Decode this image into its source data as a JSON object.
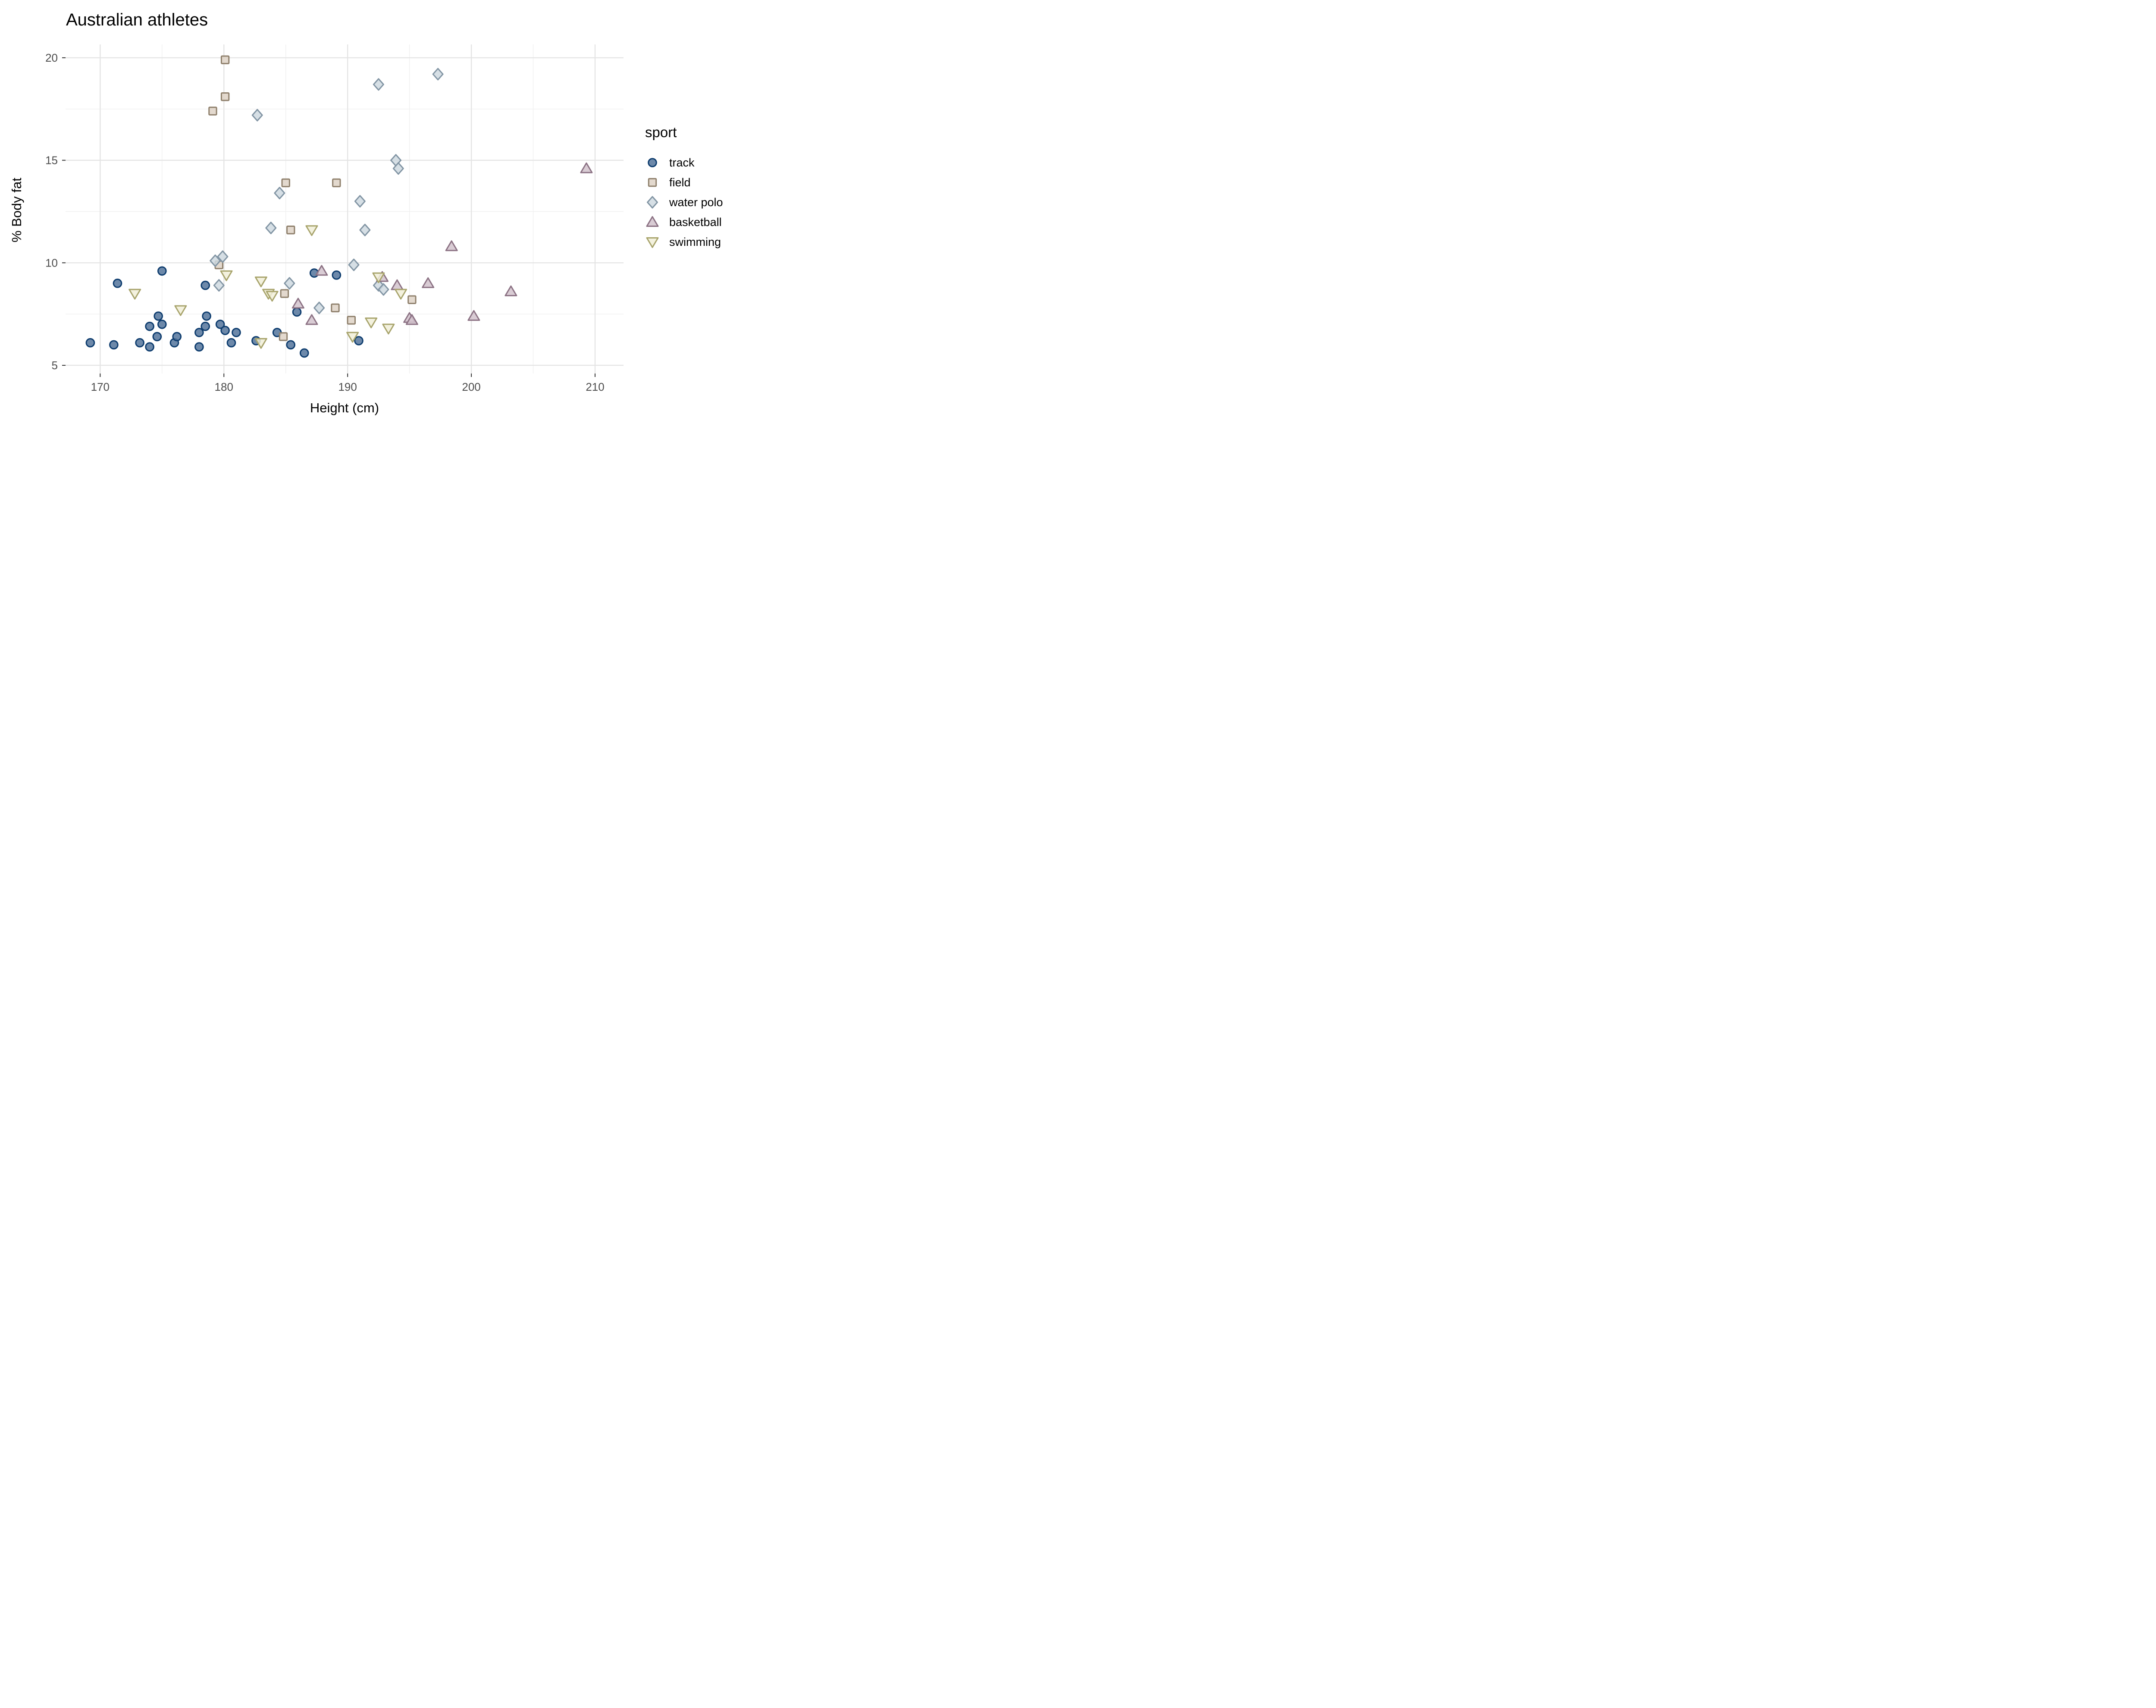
{
  "title": "Australian athletes",
  "axes": {
    "x": {
      "label": "Height (cm)",
      "major_ticks": [
        170,
        180,
        190,
        200,
        210
      ],
      "minor_ticks": [
        175,
        185,
        195,
        205
      ],
      "range": [
        167.2,
        212.3
      ]
    },
    "y": {
      "label": "% Body fat",
      "major_ticks": [
        5,
        10,
        15,
        20
      ],
      "minor_ticks": [
        7.5,
        12.5,
        17.5
      ],
      "range": [
        4.6,
        20.65
      ]
    }
  },
  "legend": {
    "title": "sport",
    "position": "right",
    "items": [
      {
        "label": "track",
        "marker": "circle"
      },
      {
        "label": "field",
        "marker": "square"
      },
      {
        "label": "water polo",
        "marker": "diamond"
      },
      {
        "label": "basketball",
        "marker": "triangle-up"
      },
      {
        "label": "swimming",
        "marker": "triangle-down"
      }
    ]
  },
  "colors": {
    "track": {
      "fill": "#54749B",
      "stroke": "#0D3C6E"
    },
    "field": {
      "fill": "#DED2C5",
      "stroke": "#8F806C"
    },
    "water polo": {
      "fill": "#CFD9E1",
      "stroke": "#8295A4"
    },
    "basketball": {
      "fill": "#D2C3CD",
      "stroke": "#8C7284"
    },
    "swimming": {
      "fill": "#F1EFD8",
      "stroke": "#A8A46C"
    },
    "grid_major": "#E4E4E4",
    "grid_minor": "#EFEFEF",
    "axis_text": "#4D4D4D",
    "tick_mark": "#333333"
  },
  "chart_data": {
    "type": "scatter",
    "title": "Australian athletes",
    "xlabel": "Height (cm)",
    "ylabel": "% Body fat",
    "xlim": [
      167.2,
      212.3
    ],
    "ylim": [
      4.6,
      20.65
    ],
    "grid": "on",
    "legend_position": "right",
    "series": [
      {
        "name": "track",
        "marker": "circle",
        "points": [
          [
            169.2,
            6.1
          ],
          [
            171.1,
            6.0
          ],
          [
            171.4,
            9.0
          ],
          [
            173.2,
            6.1
          ],
          [
            174.0,
            6.9
          ],
          [
            174.0,
            5.9
          ],
          [
            174.6,
            6.4
          ],
          [
            174.7,
            7.4
          ],
          [
            175.0,
            7.0
          ],
          [
            175.0,
            9.6
          ],
          [
            176.0,
            6.1
          ],
          [
            176.2,
            6.4
          ],
          [
            178.0,
            6.6
          ],
          [
            178.0,
            5.9
          ],
          [
            178.5,
            8.9
          ],
          [
            178.6,
            7.4
          ],
          [
            178.5,
            6.9
          ],
          [
            179.7,
            7.0
          ],
          [
            180.1,
            6.7
          ],
          [
            180.6,
            6.1
          ],
          [
            181.0,
            6.6
          ],
          [
            182.6,
            6.2
          ],
          [
            184.3,
            6.6
          ],
          [
            185.4,
            6.0
          ],
          [
            185.9,
            7.6
          ],
          [
            186.5,
            5.6
          ],
          [
            187.3,
            9.5
          ],
          [
            189.1,
            9.4
          ],
          [
            190.9,
            6.2
          ]
        ]
      },
      {
        "name": "field",
        "marker": "square",
        "points": [
          [
            180.1,
            19.9
          ],
          [
            180.1,
            18.1
          ],
          [
            179.1,
            17.4
          ],
          [
            185.0,
            13.9
          ],
          [
            189.1,
            13.9
          ],
          [
            185.4,
            11.6
          ],
          [
            179.6,
            9.9
          ],
          [
            184.9,
            8.5
          ],
          [
            189.0,
            7.8
          ],
          [
            190.3,
            7.2
          ],
          [
            184.8,
            6.4
          ],
          [
            195.2,
            8.2
          ]
        ]
      },
      {
        "name": "water polo",
        "marker": "diamond",
        "points": [
          [
            182.7,
            17.2
          ],
          [
            192.5,
            18.7
          ],
          [
            197.3,
            19.2
          ],
          [
            193.9,
            15.0
          ],
          [
            194.1,
            14.6
          ],
          [
            184.5,
            13.4
          ],
          [
            191.0,
            13.0
          ],
          [
            183.8,
            11.7
          ],
          [
            191.4,
            11.6
          ],
          [
            190.5,
            9.9
          ],
          [
            179.3,
            10.1
          ],
          [
            179.9,
            10.3
          ],
          [
            179.6,
            8.9
          ],
          [
            185.3,
            9.0
          ],
          [
            187.7,
            7.8
          ],
          [
            192.5,
            8.9
          ],
          [
            192.9,
            8.7
          ]
        ]
      },
      {
        "name": "basketball",
        "marker": "triangle-up",
        "points": [
          [
            209.3,
            14.6
          ],
          [
            198.4,
            10.8
          ],
          [
            203.2,
            8.6
          ],
          [
            200.2,
            7.4
          ],
          [
            196.5,
            9.0
          ],
          [
            194.0,
            8.9
          ],
          [
            192.8,
            9.3
          ],
          [
            195.0,
            7.3
          ],
          [
            195.2,
            7.2
          ],
          [
            186.0,
            8.0
          ],
          [
            187.1,
            7.2
          ],
          [
            187.9,
            9.6
          ]
        ]
      },
      {
        "name": "swimming",
        "marker": "triangle-down",
        "points": [
          [
            172.8,
            8.5
          ],
          [
            176.5,
            7.7
          ],
          [
            180.2,
            9.4
          ],
          [
            183.0,
            9.1
          ],
          [
            183.6,
            8.5
          ],
          [
            183.9,
            8.4
          ],
          [
            187.1,
            11.6
          ],
          [
            183.0,
            6.1
          ],
          [
            190.4,
            6.4
          ],
          [
            191.9,
            7.1
          ],
          [
            193.3,
            6.8
          ],
          [
            192.5,
            9.3
          ],
          [
            194.3,
            8.5
          ]
        ]
      }
    ]
  }
}
